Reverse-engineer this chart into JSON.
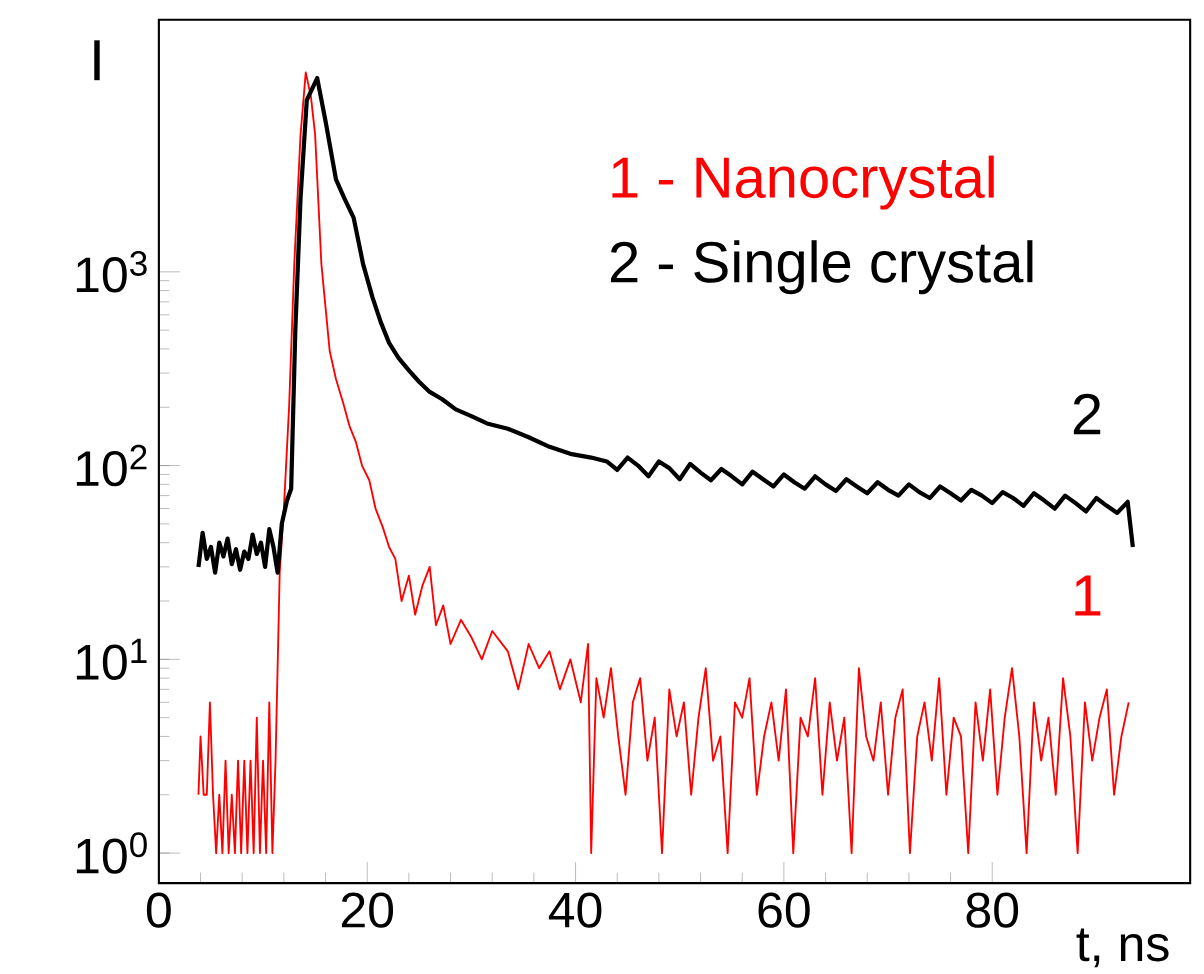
{
  "chart_data": {
    "type": "line",
    "log": "y",
    "xlabel": "t, ns",
    "ylabel": "I",
    "xlim": [
      0,
      99
    ],
    "xticks": [
      0,
      20,
      40,
      60,
      80
    ],
    "ylim": [
      0.7,
      20000
    ],
    "yticks": [
      {
        "value": 1,
        "label": "10$^{0}$"
      },
      {
        "value": 10,
        "label": "10$^{1}$"
      },
      {
        "value": 100,
        "label": "10$^{2}$"
      },
      {
        "value": 1000,
        "label": "10$^{3}$"
      }
    ],
    "annotations": [
      "1 - Nanocrystal",
      "2 - Single crystal"
    ],
    "series": [
      {
        "name": "1",
        "color": "#ff0000",
        "x": [
          3.8,
          4.0,
          4.3,
          4.6,
          4.9,
          5.2,
          5.5,
          5.8,
          6.1,
          6.4,
          6.7,
          7.0,
          7.3,
          7.6,
          7.9,
          8.2,
          8.5,
          8.8,
          9.1,
          9.4,
          9.7,
          10.0,
          10.3,
          10.6,
          10.9,
          11.2,
          11.6,
          12.0,
          12.5,
          13.0,
          13.6,
          14.1,
          14.6,
          15.0,
          15.6,
          16.4,
          17.0,
          17.7,
          18.3,
          18.9,
          19.5,
          20.2,
          20.8,
          21.5,
          22.1,
          22.7,
          23.3,
          24.0,
          24.6,
          25.3,
          26.0,
          26.6,
          27.3,
          28.0,
          29.0,
          30.0,
          31.0,
          32.0,
          33.5,
          34.5,
          35.5,
          36.5,
          37.5,
          38.5,
          39.5,
          40.5,
          41.2,
          41.5,
          42.0,
          42.7,
          43.4,
          44.1,
          44.8,
          45.5,
          46.2,
          46.9,
          47.6,
          48.3,
          49.0,
          49.7,
          50.4,
          51.1,
          51.8,
          52.5,
          53.2,
          53.9,
          54.6,
          55.3,
          56.0,
          56.7,
          57.4,
          58.1,
          58.8,
          59.5,
          60.2,
          60.9,
          61.6,
          62.3,
          63.0,
          63.7,
          64.4,
          65.1,
          65.8,
          66.5,
          67.2,
          67.9,
          68.6,
          69.3,
          70.0,
          70.7,
          71.4,
          72.1,
          72.8,
          73.5,
          74.2,
          74.9,
          75.6,
          76.3,
          77.0,
          77.7,
          78.4,
          79.1,
          79.8,
          80.5,
          81.2,
          81.9,
          82.6,
          83.3,
          84.0,
          84.7,
          85.4,
          86.1,
          86.8,
          87.5,
          88.2,
          88.9,
          89.6,
          90.3,
          91.0,
          91.7,
          92.4,
          93.1
        ],
        "values": [
          2,
          4,
          2,
          2,
          6,
          2,
          1,
          2,
          1,
          3,
          1,
          2,
          1,
          3,
          1,
          3,
          1,
          3,
          1,
          5,
          1,
          3,
          1,
          6,
          1,
          3,
          28,
          60,
          200,
          1100,
          5100,
          10700,
          8000,
          5100,
          1100,
          390,
          280,
          210,
          160,
          133,
          100,
          84,
          60,
          48,
          38,
          33,
          20,
          27,
          17,
          24,
          30,
          15,
          19,
          12,
          16,
          13,
          10,
          14,
          11,
          7,
          12,
          9,
          11,
          7,
          10,
          6,
          12,
          1,
          8,
          5,
          9,
          4,
          2,
          6,
          8,
          3,
          5,
          1,
          7,
          4,
          6,
          2,
          5,
          9,
          3,
          4,
          1,
          6,
          5,
          8,
          2,
          4,
          6,
          3,
          7,
          1,
          5,
          4,
          8,
          2,
          6,
          3,
          5,
          1,
          9,
          4,
          3,
          6,
          2,
          5,
          7,
          1,
          4,
          6,
          3,
          8,
          2,
          5,
          4,
          1,
          6,
          3,
          7,
          2,
          5,
          9,
          4,
          1,
          6,
          3,
          5,
          2,
          8,
          4,
          1,
          6,
          3,
          5,
          7,
          2,
          4,
          6
        ]
      },
      {
        "name": "2",
        "color": "#000000",
        "x": [
          3.8,
          4.2,
          4.6,
          5.0,
          5.4,
          5.8,
          6.2,
          6.6,
          7.0,
          7.4,
          7.8,
          8.2,
          8.6,
          9.0,
          9.4,
          9.8,
          10.2,
          10.6,
          11.0,
          11.4,
          11.8,
          12.3,
          12.7,
          13.1,
          13.6,
          14.2,
          15.2,
          16.0,
          17.0,
          17.8,
          18.7,
          19.6,
          20.5,
          21.3,
          22.1,
          23.0,
          24.0,
          25.0,
          26.0,
          27.2,
          28.5,
          30.0,
          31.5,
          33.5,
          35.5,
          37.5,
          39.5,
          41.5,
          43.0,
          44,
          45,
          46,
          47,
          48,
          49,
          50,
          51,
          52,
          53,
          54,
          55,
          56,
          57,
          58,
          59,
          60,
          61,
          62,
          63,
          64,
          65,
          66,
          67,
          68,
          69,
          70,
          71,
          72,
          73,
          74,
          75,
          76,
          77,
          78,
          79,
          80,
          81,
          82,
          83,
          84,
          85,
          86,
          87,
          88,
          89,
          90,
          91,
          92,
          93,
          93.5
        ],
        "values": [
          30,
          45,
          33,
          38,
          28,
          40,
          34,
          42,
          31,
          37,
          29,
          36,
          33,
          44,
          35,
          40,
          30,
          47,
          38,
          28,
          50,
          66,
          76,
          500,
          2400,
          7700,
          10000,
          6000,
          3000,
          2400,
          1900,
          1100,
          740,
          550,
          430,
          360,
          310,
          270,
          240,
          220,
          195,
          180,
          165,
          155,
          140,
          125,
          115,
          110,
          105,
          95,
          110,
          100,
          88,
          105,
          97,
          85,
          102,
          92,
          84,
          96,
          88,
          80,
          93,
          85,
          78,
          90,
          82,
          76,
          88,
          80,
          74,
          85,
          78,
          72,
          82,
          75,
          70,
          80,
          73,
          68,
          78,
          72,
          66,
          75,
          70,
          64,
          73,
          68,
          62,
          72,
          66,
          60,
          70,
          64,
          58,
          68,
          62,
          57,
          65,
          38
        ]
      }
    ]
  }
}
